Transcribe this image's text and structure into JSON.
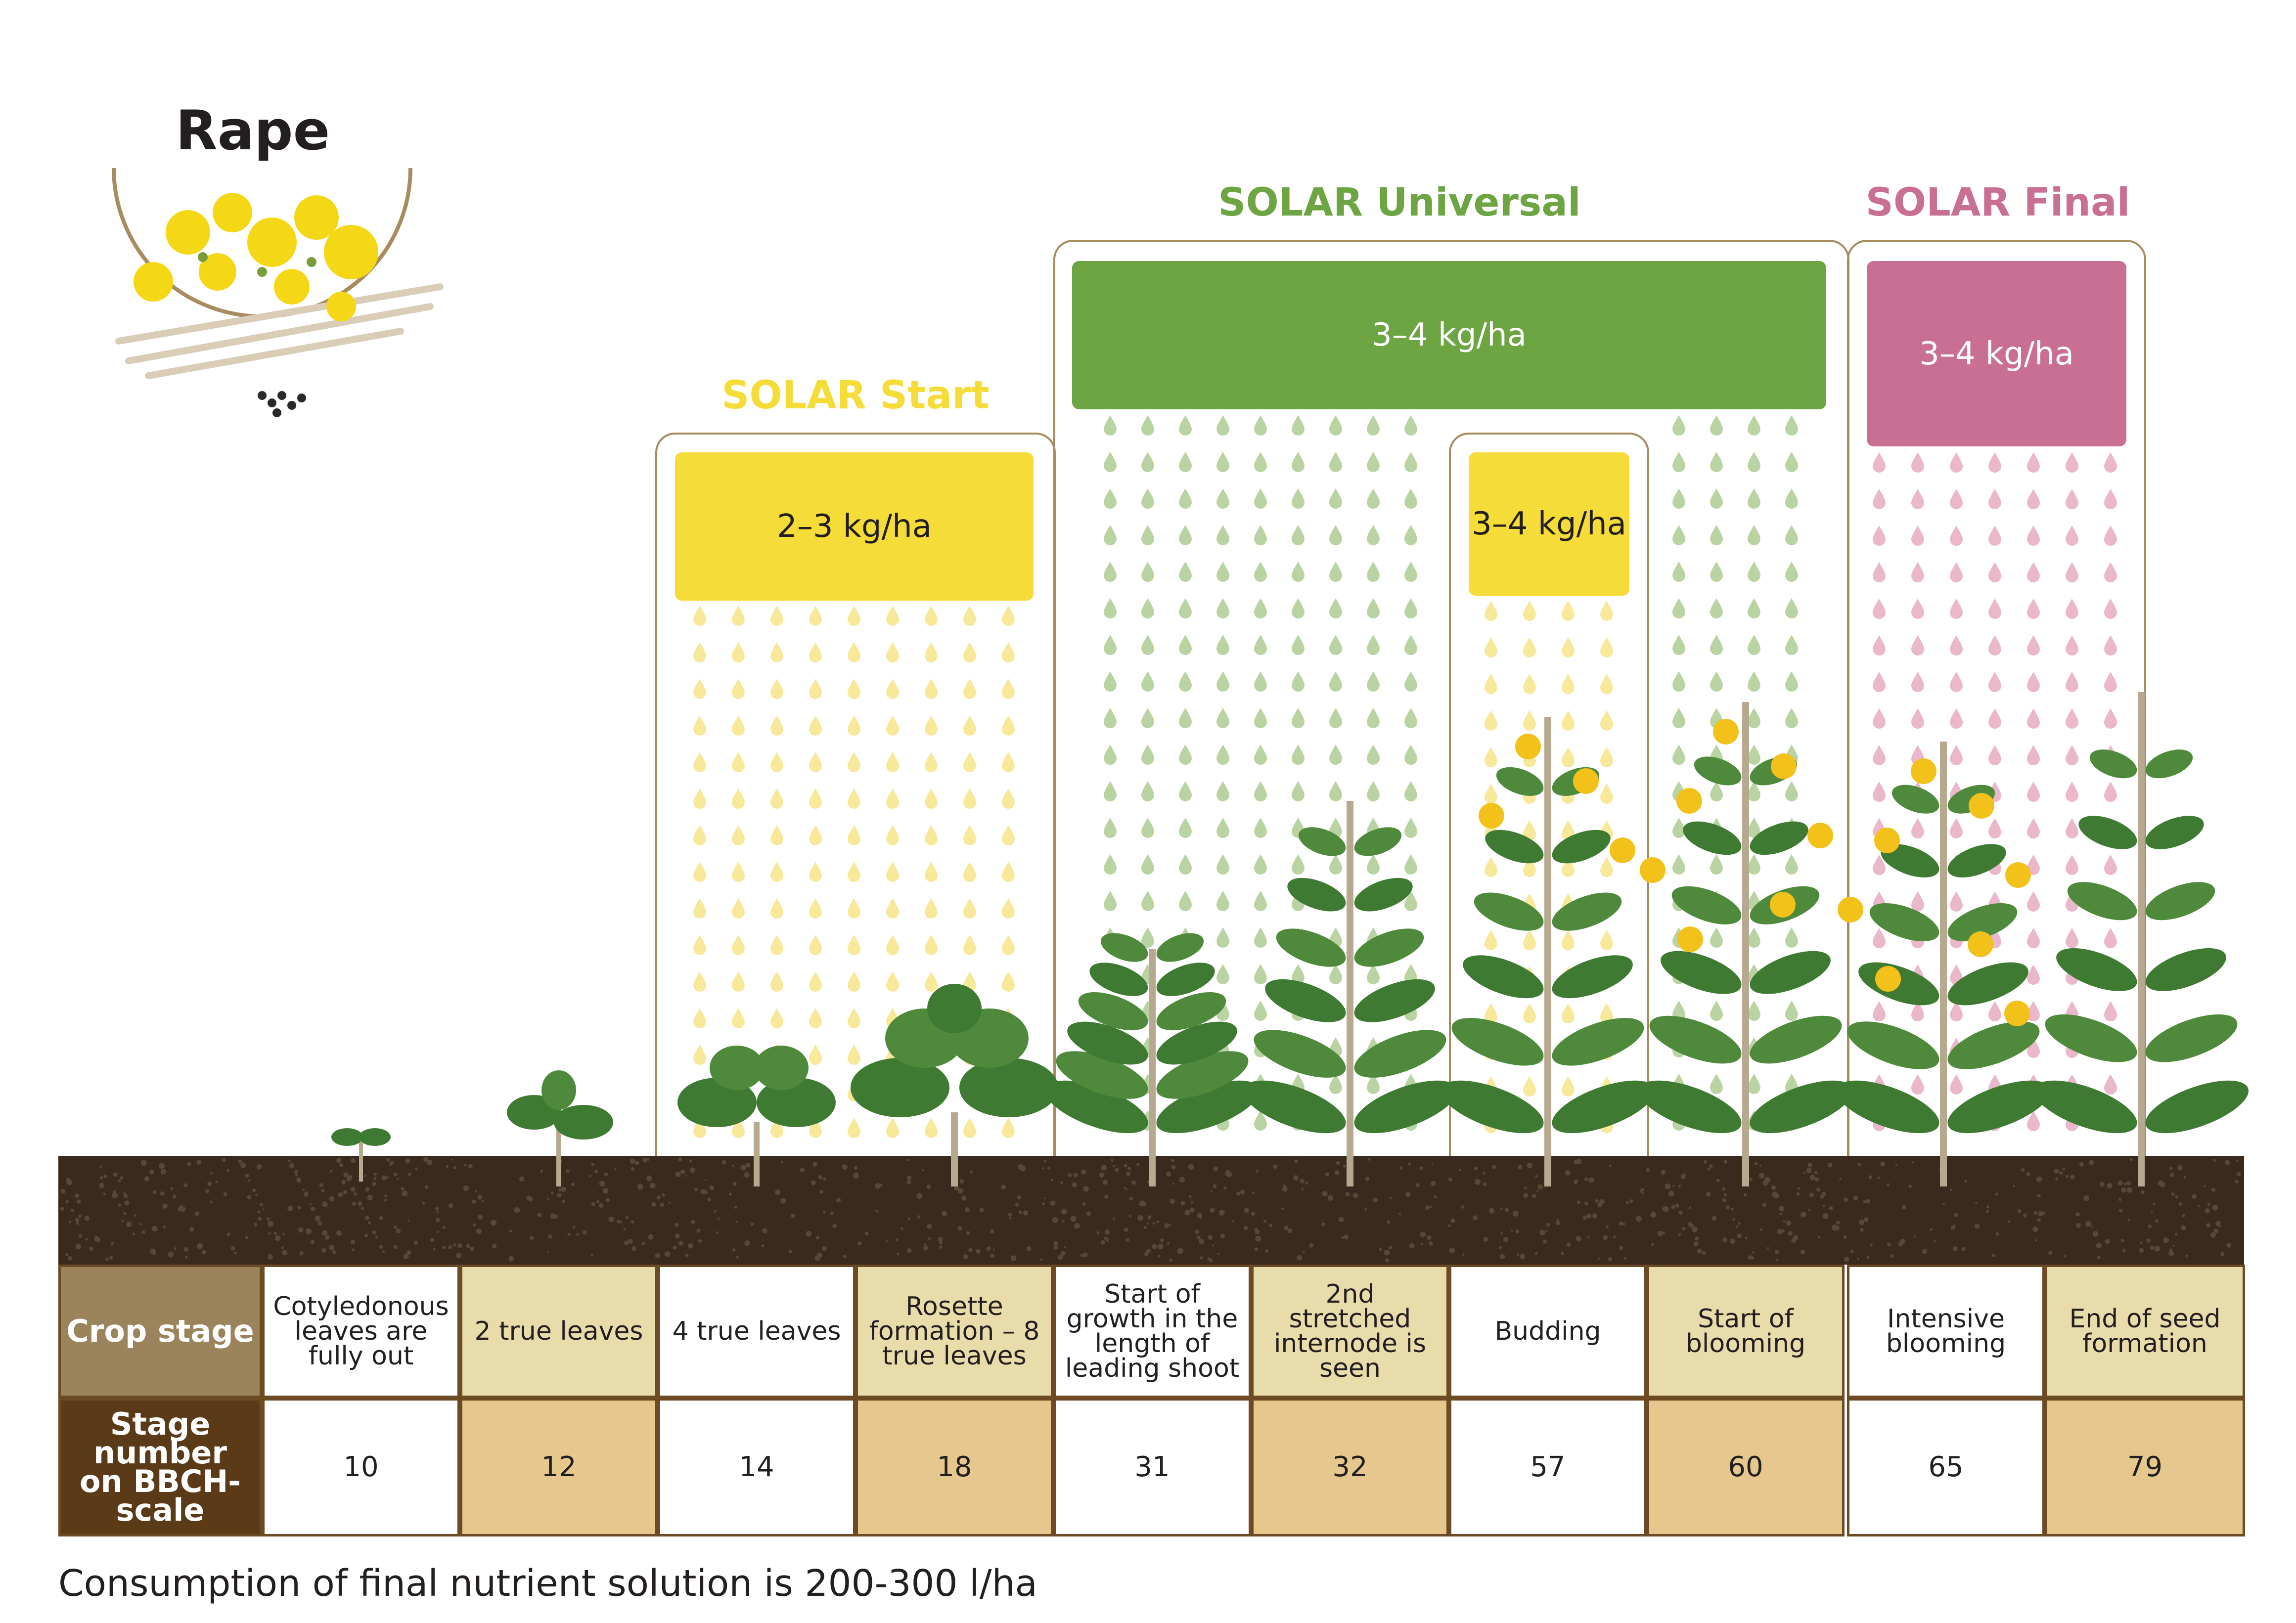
{
  "crop": {
    "title": "Rape"
  },
  "products": [
    {
      "name": "SOLAR Start",
      "rate": "2–3 kg/ha",
      "color": "#f6dc38",
      "title_color": "#f6dc38",
      "drop_color": "#f8e89a"
    },
    {
      "name": "SOLAR Universal",
      "rate": "3–4 kg/ha",
      "color": "#6da543",
      "title_color": "#6da543",
      "drop_color": "#b9d3a3"
    },
    {
      "name": "",
      "rate": "3–4 kg/ha",
      "color": "#f6dc38",
      "title_color": "#f6dc38",
      "drop_color": "#f8e89a"
    },
    {
      "name": "SOLAR Final",
      "rate": "3–4 kg/ha",
      "color": "#c96f93",
      "title_color": "#c96f93",
      "drop_color": "#eab7cb"
    }
  ],
  "table": {
    "crop_stage_label": "Crop stage",
    "stage_number_label": "Stage number on BBCH-scale",
    "stages": [
      {
        "name": "Cotyledonous leaves are fully out",
        "bbch": "10"
      },
      {
        "name": "2 true leaves",
        "bbch": "12"
      },
      {
        "name": "4 true leaves",
        "bbch": "14"
      },
      {
        "name": "Rosette formation – 8 true leaves",
        "bbch": "18"
      },
      {
        "name": "Start of growth in the length of leading shoot",
        "bbch": "31"
      },
      {
        "name": "2nd stretched internode is seen",
        "bbch": "32"
      },
      {
        "name": "Budding",
        "bbch": "57"
      },
      {
        "name": "Start of blooming",
        "bbch": "60"
      },
      {
        "name": "Intensive blooming",
        "bbch": "65"
      },
      {
        "name": "End of seed formation",
        "bbch": "79"
      }
    ]
  },
  "footer": {
    "note": "Consumption of final nutrient solution is 200-300 l/ha"
  },
  "colors": {
    "soil": "#3a2a1e",
    "header_stage_bg": "#9b845b",
    "header_bbch_bg": "#5b3a18",
    "cell_alt": "#e8dcab",
    "cell_bbch_alt": "#e6c88e",
    "border": "#6b4a24",
    "bracket": "#a88c60",
    "plant_leaf": "#3f7a32",
    "plant_stem": "#b7a98f",
    "flower": "#f2c21b"
  }
}
